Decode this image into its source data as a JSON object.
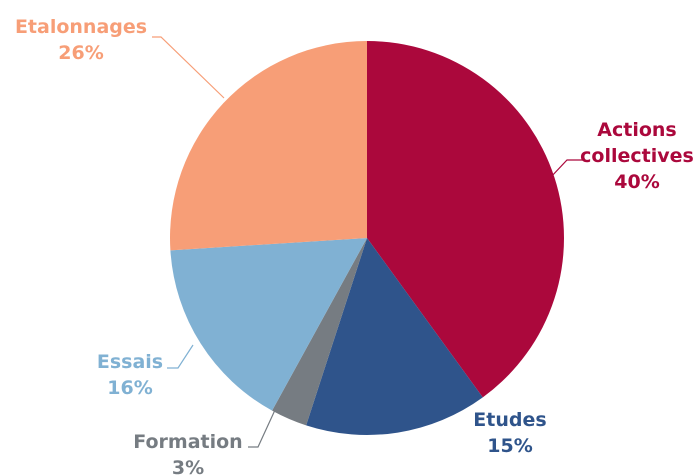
{
  "chart_data": {
    "type": "pie",
    "title": "",
    "start_angle_deg": 0,
    "direction": "clockwise",
    "slices": [
      {
        "label_lines": [
          "Actions",
          "collectives"
        ],
        "pct_label": "40%",
        "value": 40,
        "color": "#ab083c",
        "label_color": "#ab083c"
      },
      {
        "label_lines": [
          "Etudes"
        ],
        "pct_label": "15%",
        "value": 15,
        "color": "#2f548b",
        "label_color": "#2f548b"
      },
      {
        "label_lines": [
          "Formation"
        ],
        "pct_label": "3%",
        "value": 3,
        "color": "#767c82",
        "label_color": "#767c82"
      },
      {
        "label_lines": [
          "Essais"
        ],
        "pct_label": "16%",
        "value": 16,
        "color": "#80b1d3",
        "label_color": "#80b1d3"
      },
      {
        "label_lines": [
          "Etalonnages"
        ],
        "pct_label": "26%",
        "value": 26,
        "color": "#f79e77",
        "label_color": "#f79e77"
      }
    ]
  }
}
